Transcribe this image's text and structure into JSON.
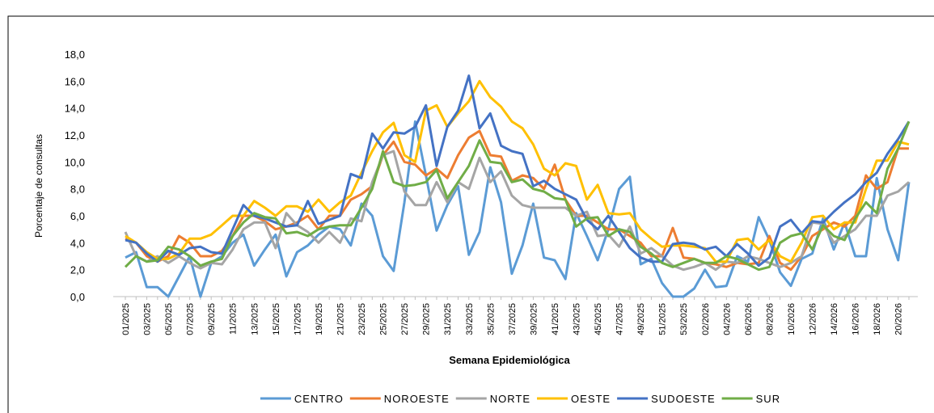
{
  "chart_data": {
    "type": "line",
    "y_label": "Porcentaje de consultas",
    "x_label": "Semana Epidemiológica",
    "categories": [
      "01/2025",
      null,
      "03/2025",
      null,
      "05/2025",
      null,
      "07/2025",
      null,
      "09/2025",
      null,
      "11/2025",
      null,
      "13/2025",
      null,
      "15/2025",
      null,
      "17/2025",
      null,
      "19/2025",
      null,
      "21/2025",
      null,
      "23/2025",
      null,
      "25/2025",
      null,
      "27/2025",
      null,
      "29/2025",
      null,
      "31/2025",
      null,
      "33/2025",
      null,
      "35/2025",
      null,
      "37/2025",
      null,
      "39/2025",
      null,
      "41/2025",
      null,
      "43/2025",
      null,
      "45/2025",
      null,
      "47/2025",
      null,
      "49/2025",
      null,
      "51/2025",
      null,
      "53/2025",
      null,
      "02/2026",
      null,
      "04/2026",
      null,
      "06/2026",
      null,
      "08/2026",
      null,
      "10/2026",
      null,
      "12/2026",
      null,
      "14/2026",
      null,
      "16/2026",
      null,
      "18/2026",
      null,
      "20/2026",
      null
    ],
    "series": [
      {
        "name": "CENTRO",
        "color": "#5b9bd5",
        "values": [
          2.9,
          3.3,
          0.7,
          0.7,
          0.0,
          1.5,
          3.0,
          0.0,
          2.5,
          3.0,
          4.0,
          4.6,
          2.3,
          3.5,
          4.6,
          1.5,
          3.3,
          3.8,
          4.6,
          5.2,
          5.0,
          3.8,
          6.9,
          6.0,
          3.0,
          1.9,
          7.0,
          13.0,
          9.0,
          4.9,
          6.8,
          8.2,
          3.1,
          4.8,
          9.6,
          7.0,
          1.7,
          3.8,
          6.9,
          2.9,
          2.7,
          1.3,
          6.2,
          4.5,
          2.7,
          5.0,
          8.0,
          8.9,
          2.4,
          2.8,
          1.0,
          0.0,
          0.0,
          0.6,
          2.0,
          0.7,
          0.8,
          3.0,
          2.6,
          5.9,
          4.2,
          1.8,
          0.8,
          2.8,
          3.2,
          5.8,
          3.5,
          5.5,
          3.0,
          3.0,
          8.8,
          5.0,
          2.7,
          8.5
        ]
      },
      {
        "name": "NOROESTE",
        "color": "#ed7d31",
        "values": [
          4.3,
          4.0,
          3.0,
          2.6,
          3.0,
          4.5,
          4.0,
          3.0,
          3.0,
          3.4,
          4.5,
          6.0,
          6.0,
          5.6,
          5.0,
          5.2,
          5.5,
          6.0,
          5.0,
          6.0,
          6.0,
          7.2,
          7.6,
          8.2,
          10.5,
          11.5,
          10.0,
          9.8,
          9.0,
          9.5,
          8.8,
          10.5,
          11.8,
          12.3,
          10.5,
          10.4,
          8.6,
          9.0,
          8.8,
          8.0,
          9.8,
          7.2,
          6.0,
          6.0,
          5.5,
          5.0,
          5.0,
          4.5,
          4.0,
          3.0,
          3.0,
          5.1,
          2.9,
          2.8,
          2.5,
          2.4,
          2.2,
          2.5,
          2.4,
          2.5,
          4.5,
          2.5,
          2.0,
          3.0,
          4.5,
          5.0,
          5.5,
          5.2,
          6.0,
          9.0,
          8.0,
          8.5,
          11.0,
          11.0
        ]
      },
      {
        "name": "NORTE",
        "color": "#a5a5a5",
        "values": [
          4.8,
          3.0,
          2.6,
          3.0,
          2.5,
          3.0,
          2.5,
          2.1,
          2.5,
          2.4,
          3.5,
          5.0,
          5.5,
          5.5,
          3.6,
          6.2,
          5.3,
          4.8,
          4.0,
          4.8,
          4.0,
          5.8,
          5.6,
          8.5,
          10.5,
          10.8,
          7.8,
          6.8,
          6.8,
          8.5,
          7.0,
          8.5,
          8.0,
          10.3,
          8.5,
          9.3,
          7.5,
          6.8,
          6.6,
          6.6,
          6.6,
          6.6,
          6.0,
          6.3,
          4.5,
          4.6,
          3.7,
          5.2,
          3.2,
          3.6,
          3.0,
          2.3,
          2.0,
          2.2,
          2.5,
          2.0,
          2.6,
          2.5,
          3.0,
          2.8,
          2.5,
          2.2,
          2.5,
          3.0,
          5.5,
          5.4,
          4.0,
          4.5,
          5.0,
          6.0,
          6.0,
          7.5,
          7.8,
          8.5
        ]
      },
      {
        "name": "OESTE",
        "color": "#ffc000",
        "values": [
          4.5,
          4.0,
          3.3,
          2.8,
          2.8,
          3.2,
          4.3,
          4.3,
          4.6,
          5.3,
          6.0,
          6.0,
          7.1,
          6.6,
          6.0,
          6.7,
          6.7,
          6.3,
          7.2,
          6.3,
          7.0,
          7.5,
          9.2,
          10.8,
          12.2,
          12.9,
          10.5,
          10.0,
          13.8,
          14.2,
          12.6,
          13.6,
          14.5,
          16.0,
          14.8,
          14.1,
          13.0,
          12.5,
          11.3,
          9.5,
          9.0,
          9.9,
          9.7,
          7.2,
          8.3,
          6.2,
          6.1,
          6.2,
          5.0,
          4.3,
          3.7,
          3.8,
          3.8,
          3.7,
          3.6,
          2.6,
          2.6,
          4.2,
          4.3,
          3.5,
          4.2,
          3.0,
          2.6,
          4.0,
          5.9,
          6.0,
          5.0,
          5.5,
          5.5,
          8.0,
          10.1,
          10.1,
          11.5,
          11.3
        ]
      },
      {
        "name": "SUDOESTE",
        "color": "#4472c4",
        "values": [
          4.2,
          4.0,
          3.2,
          2.6,
          3.4,
          3.1,
          3.6,
          3.7,
          3.3,
          3.2,
          5.0,
          6.8,
          6.0,
          5.8,
          5.5,
          5.2,
          5.3,
          7.1,
          5.4,
          5.7,
          6.0,
          9.1,
          8.8,
          12.1,
          11.0,
          12.2,
          12.1,
          12.6,
          14.2,
          9.7,
          12.6,
          13.8,
          16.4,
          12.5,
          13.6,
          11.2,
          10.8,
          10.6,
          8.2,
          8.6,
          8.0,
          7.6,
          7.2,
          5.7,
          5.0,
          6.0,
          4.8,
          3.6,
          2.9,
          2.6,
          2.6,
          3.9,
          4.0,
          3.9,
          3.5,
          3.7,
          3.0,
          3.9,
          3.2,
          2.3,
          2.9,
          5.2,
          5.7,
          4.7,
          5.6,
          5.5,
          6.3,
          7.0,
          7.6,
          8.5,
          9.2,
          10.6,
          11.7,
          13.0
        ]
      },
      {
        "name": "SUR",
        "color": "#70ad47",
        "values": [
          2.2,
          3.0,
          2.6,
          2.7,
          3.7,
          3.5,
          3.0,
          2.3,
          2.6,
          2.8,
          4.5,
          5.5,
          6.2,
          5.9,
          5.8,
          4.7,
          4.8,
          4.5,
          5.0,
          5.2,
          5.3,
          5.3,
          6.6,
          8.0,
          10.8,
          8.5,
          8.2,
          8.3,
          8.5,
          9.4,
          7.3,
          8.5,
          9.7,
          11.6,
          10.0,
          9.9,
          8.5,
          8.7,
          8.0,
          7.8,
          7.3,
          7.2,
          5.2,
          5.8,
          5.9,
          4.5,
          5.0,
          4.8,
          3.7,
          3.2,
          2.5,
          2.2,
          2.5,
          2.8,
          2.5,
          2.5,
          3.0,
          2.8,
          2.4,
          2.0,
          2.2,
          4.0,
          4.5,
          4.7,
          3.5,
          5.3,
          4.5,
          4.2,
          5.8,
          7.0,
          6.2,
          9.5,
          11.0,
          13.0
        ]
      }
    ],
    "ylim": [
      0,
      18
    ],
    "yticks": [
      {
        "value": 0,
        "label": "0,0"
      },
      {
        "value": 2,
        "label": "2,0"
      },
      {
        "value": 4,
        "label": "4,0"
      },
      {
        "value": 6,
        "label": "6,0"
      },
      {
        "value": 8,
        "label": "8,0"
      },
      {
        "value": 10,
        "label": "10,0"
      },
      {
        "value": 12,
        "label": "12,0"
      },
      {
        "value": 14,
        "label": "14,0"
      },
      {
        "value": 16,
        "label": "16,0"
      },
      {
        "value": 18,
        "label": "18,0"
      }
    ],
    "grid": false,
    "legend": "bottom"
  }
}
